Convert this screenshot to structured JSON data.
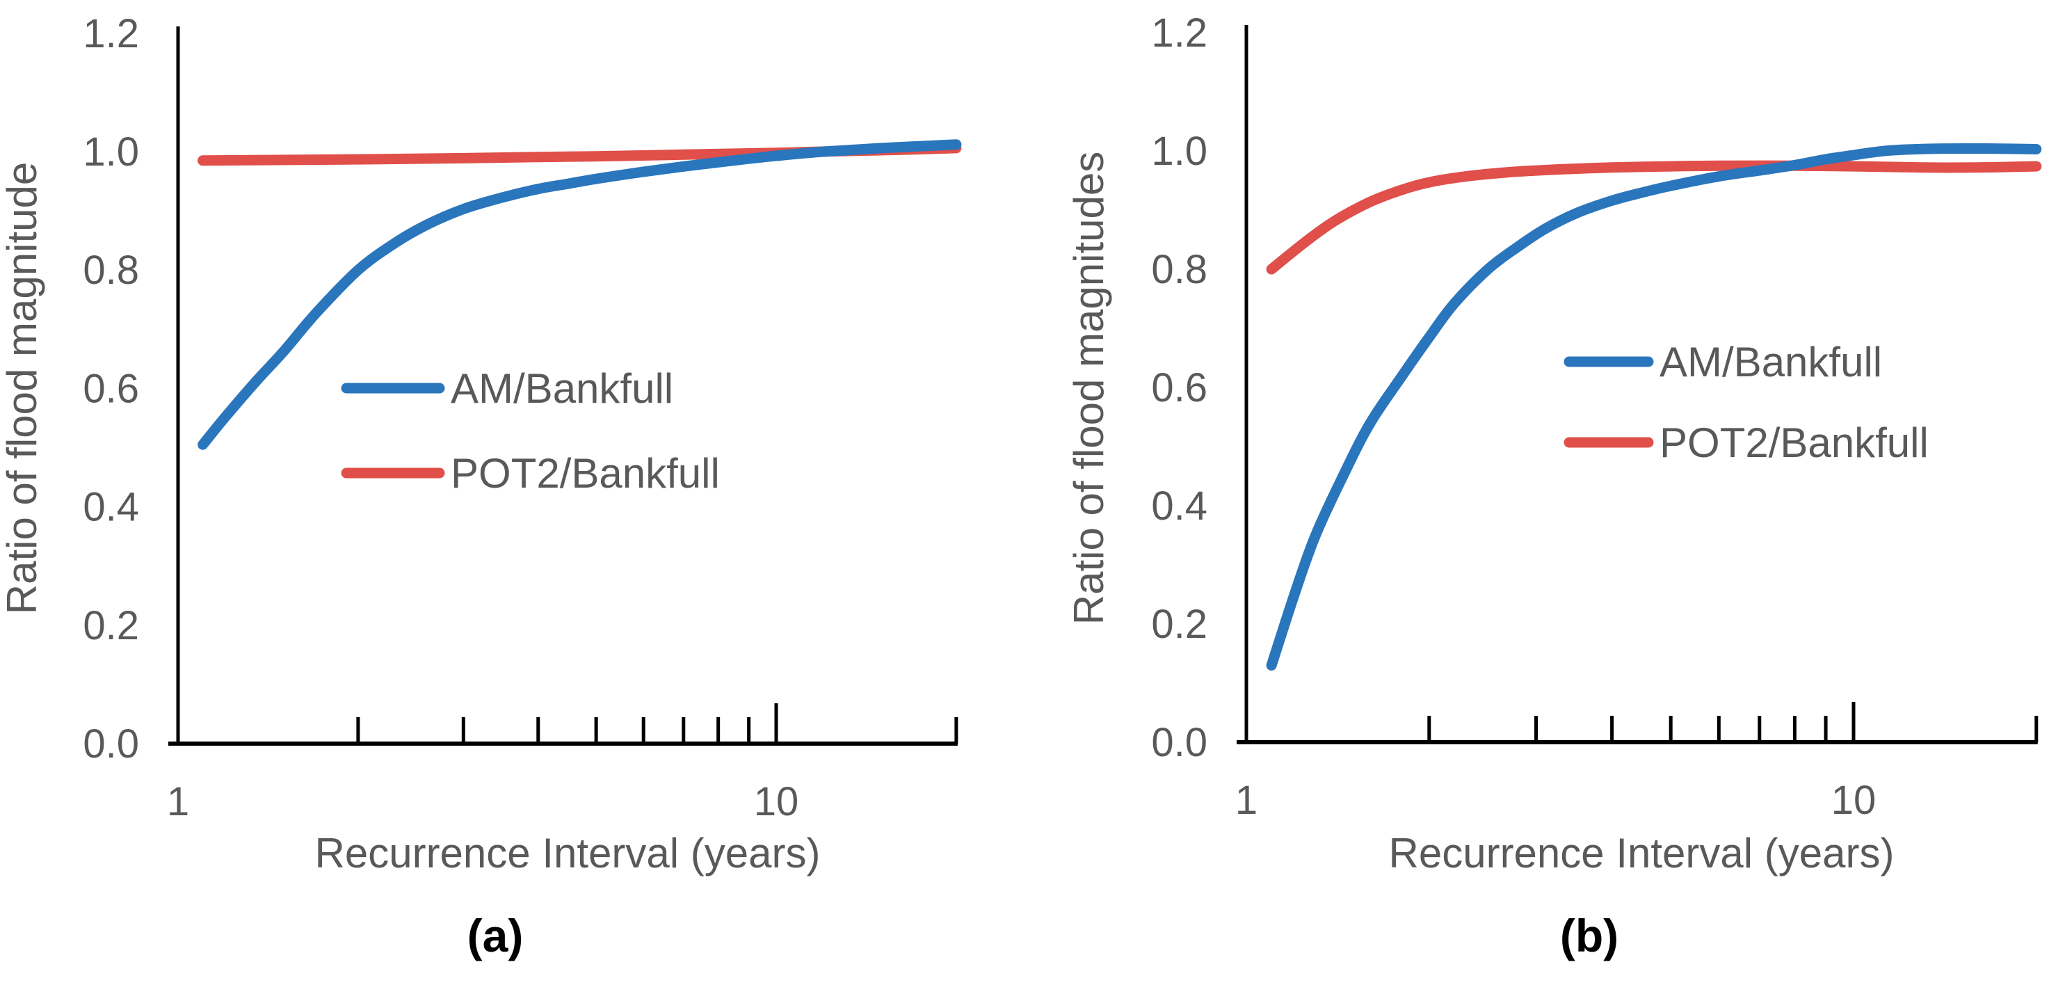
{
  "figure": {
    "background": "#ffffff",
    "axis_color": "#000000",
    "text_color": "#595959",
    "blue": "#2A76BD",
    "red": "#E04F4A"
  },
  "chart_data": [
    {
      "type": "line",
      "panel": "a",
      "caption": "(a)",
      "xlabel": "Recurrence Interval (years)",
      "ylabel": "Ratio of flood magnitude",
      "x_scale": "log",
      "xlim": [
        1,
        20
      ],
      "ylim": [
        0.0,
        1.2
      ],
      "grid": false,
      "legend_position": "inside-center",
      "xticks_labeled": [
        {
          "value": 1,
          "label": "1"
        },
        {
          "value": 10,
          "label": "10"
        }
      ],
      "xticks_minor": [
        2,
        3,
        4,
        5,
        6,
        7,
        8,
        9,
        20
      ],
      "yticks": [
        {
          "value": 0.0,
          "label": "0.0"
        },
        {
          "value": 0.2,
          "label": "0.2"
        },
        {
          "value": 0.4,
          "label": "0.4"
        },
        {
          "value": 0.6,
          "label": "0.6"
        },
        {
          "value": 0.8,
          "label": "0.8"
        },
        {
          "value": 1.0,
          "label": "1.0"
        },
        {
          "value": 1.2,
          "label": "1.2"
        }
      ],
      "series": [
        {
          "name": "POT2/Bankfull",
          "color": "#E04F4A",
          "points": [
            [
              1.1,
              0.985
            ],
            [
              1.5,
              0.986
            ],
            [
              2.0,
              0.987
            ],
            [
              3.0,
              0.989
            ],
            [
              4.0,
              0.991
            ],
            [
              5.0,
              0.992
            ],
            [
              7.0,
              0.995
            ],
            [
              10.0,
              0.998
            ],
            [
              13.0,
              1.001
            ],
            [
              16.0,
              1.003
            ],
            [
              20.0,
              1.006
            ]
          ]
        },
        {
          "name": "AM/Bankfull",
          "color": "#2A76BD",
          "points": [
            [
              1.1,
              0.505
            ],
            [
              1.2,
              0.552
            ],
            [
              1.35,
              0.612
            ],
            [
              1.5,
              0.662
            ],
            [
              1.7,
              0.727
            ],
            [
              2.0,
              0.8
            ],
            [
              2.3,
              0.845
            ],
            [
              2.6,
              0.876
            ],
            [
              3.0,
              0.903
            ],
            [
              3.5,
              0.923
            ],
            [
              4.0,
              0.937
            ],
            [
              4.5,
              0.946
            ],
            [
              5.0,
              0.954
            ],
            [
              6.0,
              0.966
            ],
            [
              7.0,
              0.975
            ],
            [
              8.0,
              0.982
            ],
            [
              9.0,
              0.988
            ],
            [
              10.0,
              0.993
            ],
            [
              12.0,
              1.0
            ],
            [
              15.0,
              1.006
            ],
            [
              20.0,
              1.012
            ]
          ]
        }
      ],
      "legend": [
        {
          "label": "AM/Bankfull",
          "color": "#2A76BD"
        },
        {
          "label": "POT2/Bankfull",
          "color": "#E04F4A"
        }
      ]
    },
    {
      "type": "line",
      "panel": "b",
      "caption": "(b)",
      "xlabel": "Recurrence Interval (years)",
      "ylabel": "Ratio of flood magnitudes",
      "x_scale": "log",
      "xlim": [
        1,
        20
      ],
      "ylim": [
        0.0,
        1.2
      ],
      "grid": false,
      "legend_position": "inside-center",
      "xticks_labeled": [
        {
          "value": 1,
          "label": "1"
        },
        {
          "value": 10,
          "label": "10"
        }
      ],
      "xticks_minor": [
        2,
        3,
        4,
        5,
        6,
        7,
        8,
        9,
        20
      ],
      "yticks": [
        {
          "value": 0.0,
          "label": "0.0"
        },
        {
          "value": 0.2,
          "label": "0.2"
        },
        {
          "value": 0.4,
          "label": "0.4"
        },
        {
          "value": 0.6,
          "label": "0.6"
        },
        {
          "value": 0.8,
          "label": "0.8"
        },
        {
          "value": 1.0,
          "label": "1.0"
        },
        {
          "value": 1.2,
          "label": "1.2"
        }
      ],
      "series": [
        {
          "name": "POT2/Bankfull",
          "color": "#E04F4A",
          "points": [
            [
              1.1,
              0.8
            ],
            [
              1.25,
              0.846
            ],
            [
              1.4,
              0.882
            ],
            [
              1.6,
              0.914
            ],
            [
              1.8,
              0.934
            ],
            [
              2.0,
              0.947
            ],
            [
              2.3,
              0.957
            ],
            [
              2.7,
              0.964
            ],
            [
              3.0,
              0.967
            ],
            [
              3.5,
              0.97
            ],
            [
              4.0,
              0.972
            ],
            [
              5.0,
              0.974
            ],
            [
              6.0,
              0.975
            ],
            [
              8.0,
              0.975
            ],
            [
              10.0,
              0.974
            ],
            [
              13.0,
              0.972
            ],
            [
              16.0,
              0.972
            ],
            [
              20.0,
              0.974
            ]
          ]
        },
        {
          "name": "AM/Bankfull",
          "color": "#2A76BD",
          "points": [
            [
              1.1,
              0.13
            ],
            [
              1.2,
              0.25
            ],
            [
              1.3,
              0.35
            ],
            [
              1.45,
              0.455
            ],
            [
              1.6,
              0.54
            ],
            [
              1.8,
              0.618
            ],
            [
              2.0,
              0.685
            ],
            [
              2.2,
              0.742
            ],
            [
              2.5,
              0.8
            ],
            [
              2.8,
              0.838
            ],
            [
              3.1,
              0.868
            ],
            [
              3.5,
              0.895
            ],
            [
              4.0,
              0.916
            ],
            [
              4.5,
              0.93
            ],
            [
              5.0,
              0.941
            ],
            [
              6.0,
              0.957
            ],
            [
              7.0,
              0.967
            ],
            [
              8.0,
              0.976
            ],
            [
              9.0,
              0.986
            ],
            [
              10.0,
              0.993
            ],
            [
              11.0,
              0.999
            ],
            [
              12.0,
              1.002
            ],
            [
              14.0,
              1.004
            ],
            [
              17.0,
              1.004
            ],
            [
              20.0,
              1.003
            ]
          ]
        }
      ],
      "legend": [
        {
          "label": "AM/Bankfull",
          "color": "#2A76BD"
        },
        {
          "label": "POT2/Bankfull",
          "color": "#E04F4A"
        }
      ]
    }
  ]
}
